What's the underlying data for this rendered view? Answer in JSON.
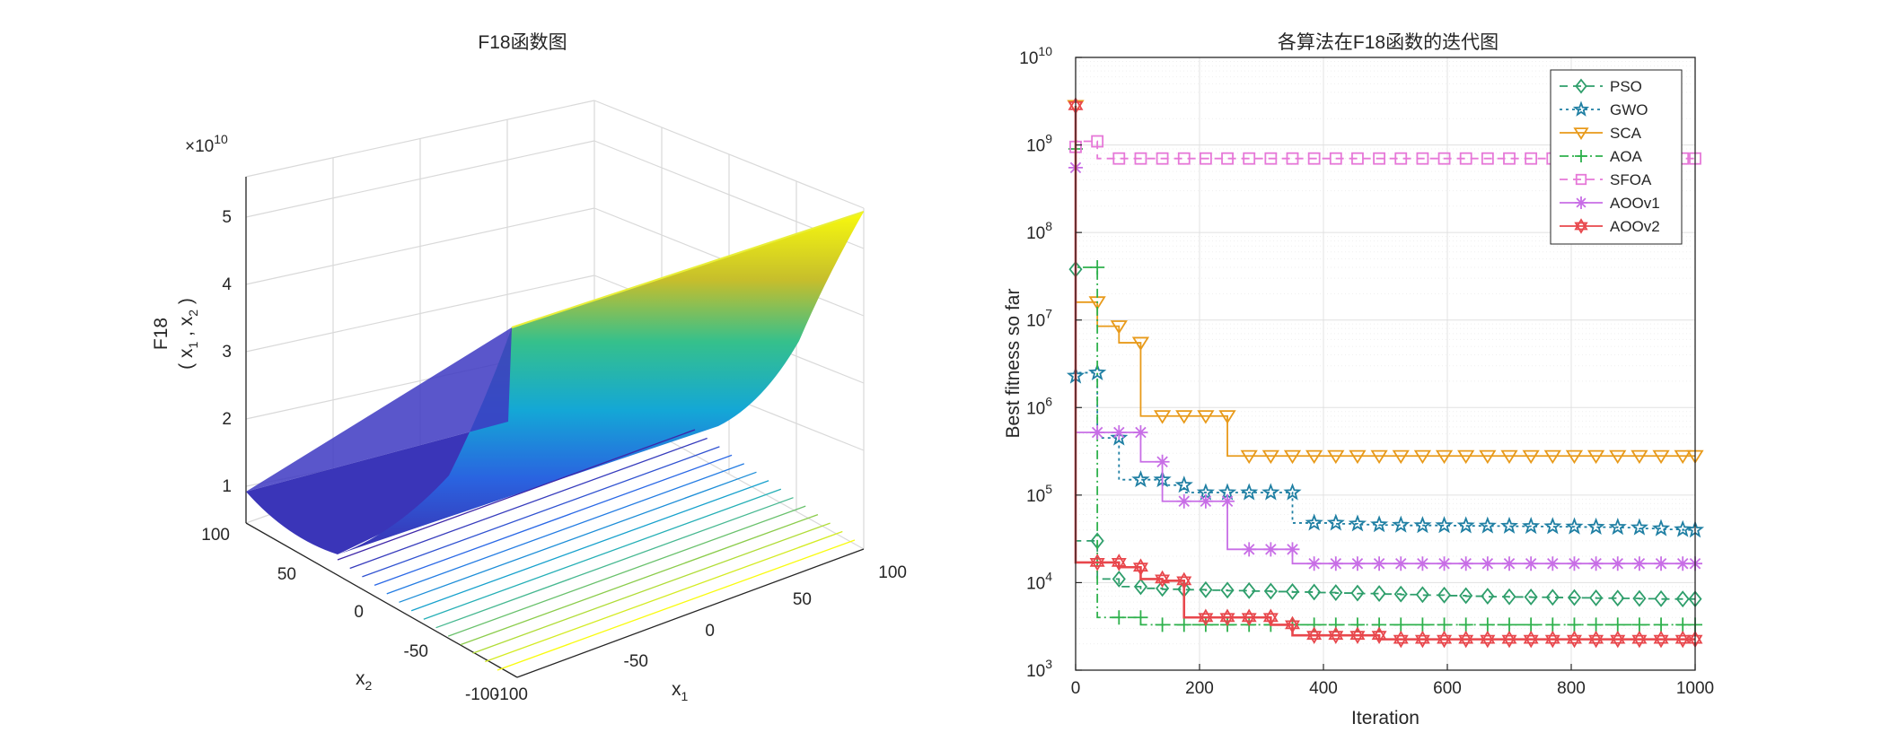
{
  "chart_data": [
    {
      "type": "surface",
      "title": "F18函数图",
      "xlabel": "x1",
      "ylabel": "x2",
      "zlabel": "F18 (x1 , x2)",
      "exponent_label": "×10",
      "exponent_power": "10",
      "x_ticks": [
        "-100",
        "-50",
        "0",
        "50",
        "100"
      ],
      "y_ticks": [
        "-100",
        "-50",
        "0",
        "50",
        "100"
      ],
      "z_ticks": [
        "1",
        "2",
        "3",
        "4",
        "5"
      ],
      "xlim": [
        -100,
        100
      ],
      "ylim": [
        -100,
        100
      ],
      "zlim": [
        0,
        5.5
      ],
      "colormap": "parula",
      "contour_levels": 14
    },
    {
      "type": "line",
      "title": "各算法在F18函数的迭代图",
      "xlabel": "Iteration",
      "ylabel": "Best fitness so far",
      "yscale": "log",
      "xlim": [
        0,
        1000
      ],
      "ylim": [
        1000,
        10000000000
      ],
      "x_ticks": [
        "0",
        "200",
        "400",
        "600",
        "800",
        "1000"
      ],
      "y_tick_exponents": [
        "3",
        "4",
        "5",
        "6",
        "7",
        "8",
        "9",
        "10"
      ],
      "y_tick_base": "10",
      "grid": true,
      "legend_position": "top-right",
      "series": [
        {
          "name": "PSO",
          "color": "#2e9e6b",
          "marker": "diamond",
          "dash": "9,6",
          "x": [
            0,
            35,
            70,
            105,
            140,
            175,
            210,
            245,
            280,
            315,
            350,
            385,
            420,
            455,
            490,
            525,
            560,
            595,
            630,
            665,
            700,
            735,
            770,
            805,
            840,
            875,
            910,
            945,
            980,
            1000
          ],
          "y": [
            38000000,
            30000,
            11000,
            9000,
            8600,
            8400,
            8300,
            8200,
            8100,
            8000,
            7900,
            7800,
            7700,
            7600,
            7500,
            7400,
            7300,
            7200,
            7100,
            7000,
            6900,
            6850,
            6800,
            6750,
            6700,
            6650,
            6600,
            6550,
            6500,
            6500
          ]
        },
        {
          "name": "GWO",
          "color": "#1f7fa3",
          "marker": "star",
          "dash": "3,4",
          "x": [
            0,
            35,
            70,
            105,
            140,
            175,
            210,
            245,
            280,
            315,
            350,
            385,
            420,
            455,
            490,
            525,
            560,
            595,
            630,
            665,
            700,
            735,
            770,
            805,
            840,
            875,
            910,
            945,
            980,
            1000
          ],
          "y": [
            2300000,
            2500000,
            450000,
            150000,
            150000,
            130000,
            107000,
            107000,
            107000,
            107000,
            107000,
            48000,
            48000,
            47000,
            46000,
            45500,
            45000,
            45000,
            44800,
            44500,
            44300,
            44000,
            43800,
            43500,
            43200,
            43000,
            42500,
            41500,
            40500,
            40000
          ]
        },
        {
          "name": "SCA",
          "color": "#e89a1a",
          "marker": "triangle-down",
          "dash": "",
          "x": [
            0,
            35,
            70,
            105,
            140,
            175,
            210,
            245,
            280,
            315,
            350,
            385,
            420,
            455,
            490,
            525,
            560,
            595,
            630,
            665,
            700,
            735,
            770,
            805,
            840,
            875,
            910,
            945,
            980,
            1000
          ],
          "y": [
            2800000000,
            16000000,
            8500000,
            5500000,
            800000,
            800000,
            800000,
            800000,
            280000,
            280000,
            280000,
            280000,
            280000,
            280000,
            280000,
            280000,
            280000,
            280000,
            280000,
            280000,
            280000,
            280000,
            280000,
            280000,
            280000,
            280000,
            280000,
            280000,
            280000,
            280000
          ]
        },
        {
          "name": "AOA",
          "color": "#2eb14c",
          "marker": "plus",
          "dash": "10,4,2,4",
          "x": [
            0,
            35,
            70,
            105,
            140,
            175,
            210,
            245,
            280,
            315,
            350,
            385,
            420,
            455,
            490,
            525,
            560,
            595,
            630,
            665,
            700,
            735,
            770,
            805,
            840,
            875,
            910,
            945,
            980,
            1000
          ],
          "y": [
            900000000,
            40000000,
            4000,
            4000,
            3300,
            3300,
            3300,
            3300,
            3300,
            3300,
            3300,
            3300,
            3300,
            3300,
            3300,
            3300,
            3300,
            3300,
            3300,
            3300,
            3300,
            3300,
            3300,
            3300,
            3300,
            3300,
            3300,
            3300,
            3300,
            3300
          ]
        },
        {
          "name": "SFOA",
          "color": "#e678d8",
          "marker": "square",
          "dash": "9,6",
          "x": [
            0,
            35,
            70,
            105,
            140,
            175,
            210,
            245,
            280,
            315,
            350,
            385,
            420,
            455,
            490,
            525,
            560,
            595,
            630,
            665,
            700,
            735,
            770,
            805,
            840,
            875,
            910,
            945,
            980,
            1000
          ],
          "y": [
            950000000,
            1100000000,
            700000000,
            700000000,
            700000000,
            700000000,
            700000000,
            700000000,
            700000000,
            700000000,
            700000000,
            700000000,
            700000000,
            700000000,
            700000000,
            700000000,
            700000000,
            700000000,
            700000000,
            700000000,
            700000000,
            700000000,
            700000000,
            700000000,
            700000000,
            700000000,
            700000000,
            700000000,
            700000000,
            700000000
          ]
        },
        {
          "name": "AOOv1",
          "color": "#c86ee6",
          "marker": "asterisk",
          "dash": "",
          "x": [
            0,
            35,
            70,
            105,
            140,
            175,
            210,
            245,
            280,
            315,
            350,
            385,
            420,
            455,
            490,
            525,
            560,
            595,
            630,
            665,
            700,
            735,
            770,
            805,
            840,
            875,
            910,
            945,
            980,
            1000
          ],
          "y": [
            550000000,
            520000,
            520000,
            520000,
            240000,
            85000,
            85000,
            85000,
            24000,
            24000,
            24000,
            16500,
            16500,
            16500,
            16500,
            16500,
            16500,
            16500,
            16500,
            16500,
            16500,
            16500,
            16500,
            16500,
            16500,
            16500,
            16500,
            16500,
            16500,
            16500
          ]
        },
        {
          "name": "AOOv2",
          "color": "#e8474c",
          "marker": "hexagram",
          "dash": "",
          "x": [
            0,
            35,
            70,
            105,
            140,
            175,
            210,
            245,
            280,
            315,
            350,
            385,
            420,
            455,
            490,
            525,
            560,
            595,
            630,
            665,
            700,
            735,
            770,
            805,
            840,
            875,
            910,
            945,
            980,
            1000
          ],
          "y": [
            2800000000,
            17000,
            17000,
            15000,
            11000,
            10500,
            4000,
            4000,
            4000,
            4000,
            3300,
            2500,
            2500,
            2500,
            2500,
            2250,
            2250,
            2250,
            2250,
            2250,
            2250,
            2250,
            2250,
            2250,
            2250,
            2250,
            2250,
            2250,
            2250,
            2250
          ]
        }
      ]
    }
  ]
}
